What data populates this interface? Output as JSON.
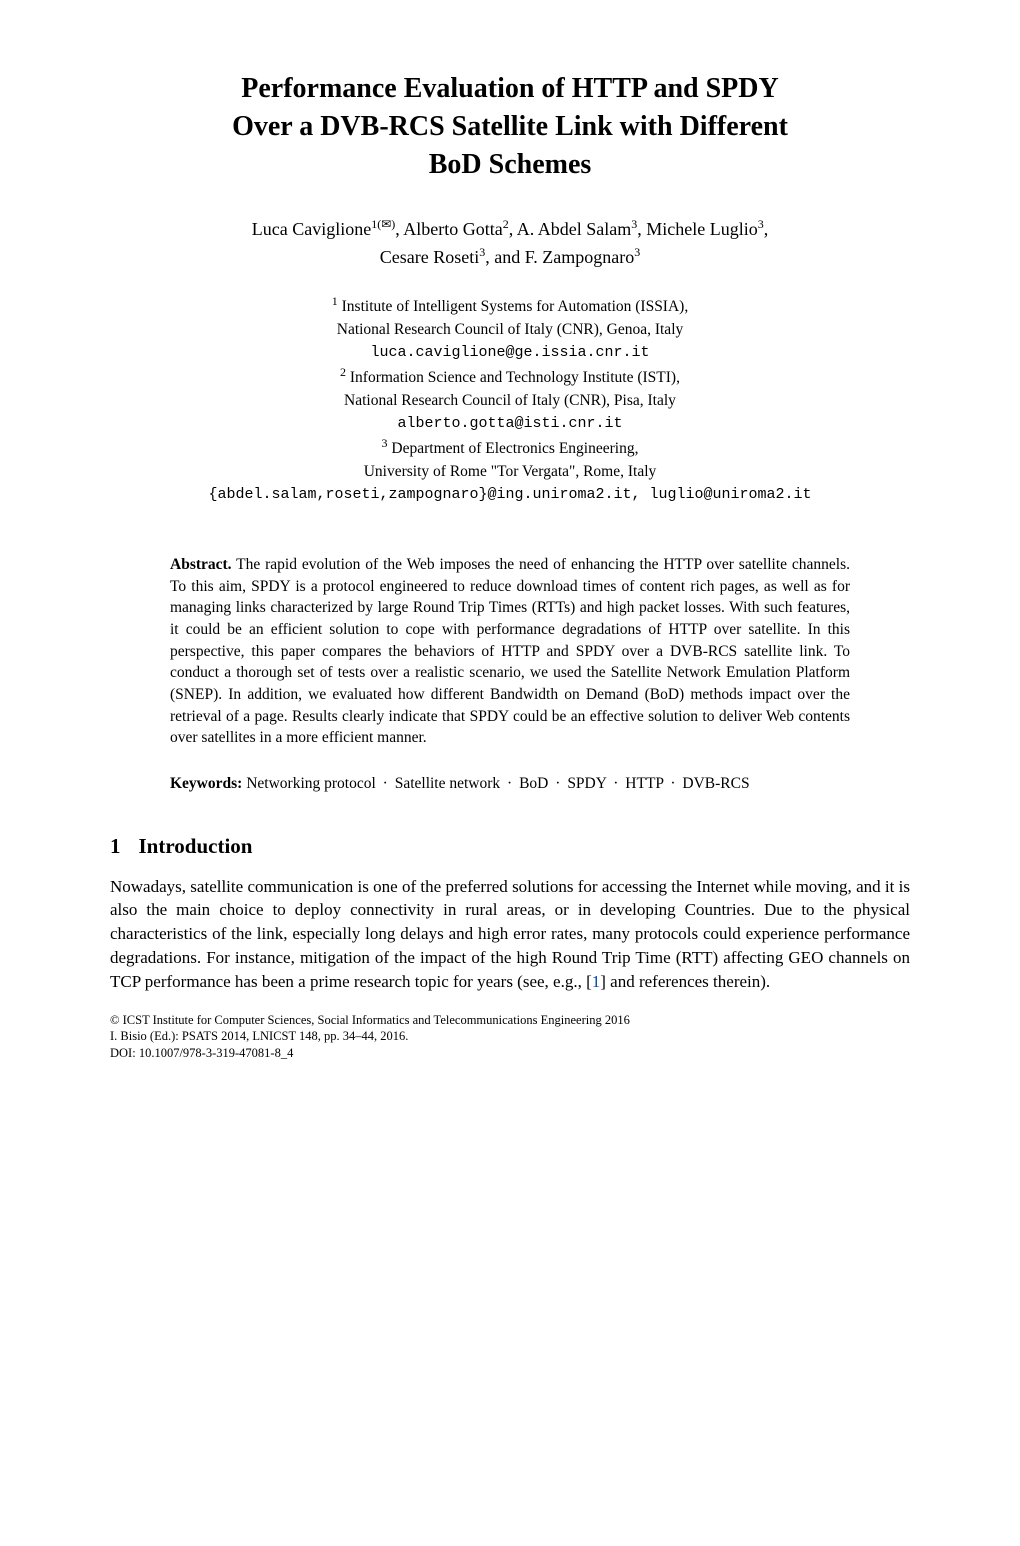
{
  "title_line1": "Performance Evaluation of HTTP and SPDY",
  "title_line2": "Over a DVB-RCS Satellite Link with Different",
  "title_line3": "BoD Schemes",
  "authors_line1_a1": "Luca Caviglione",
  "authors_line1_a1_sup": "1(",
  "authors_line1_a1_env": "✉",
  "authors_line1_a1_sup_close": ")",
  "authors_line1_sep1": ", ",
  "authors_line1_a2": "Alberto Gotta",
  "authors_line1_a2_sup": "2",
  "authors_line1_sep2": ", ",
  "authors_line1_a3": "A. Abdel Salam",
  "authors_line1_a3_sup": "3",
  "authors_line1_sep3": ", ",
  "authors_line1_a4": "Michele Luglio",
  "authors_line1_a4_sup": "3",
  "authors_line1_sep4": ",",
  "authors_line2_a5": "Cesare Roseti",
  "authors_line2_a5_sup": "3",
  "authors_line2_sep": ", and ",
  "authors_line2_a6": "F. Zampognaro",
  "authors_line2_a6_sup": "3",
  "aff1_sup": "1",
  "aff1_line1": " Institute of Intelligent Systems for Automation (ISSIA),",
  "aff1_line2": "National Research Council of Italy (CNR), Genoa, Italy",
  "aff1_email": "luca.caviglione@ge.issia.cnr.it",
  "aff2_sup": "2",
  "aff2_line1": " Information Science and Technology Institute (ISTI),",
  "aff2_line2": "National Research Council of Italy (CNR), Pisa, Italy",
  "aff2_email": "alberto.gotta@isti.cnr.it",
  "aff3_sup": "3",
  "aff3_line1": " Department of Electronics Engineering,",
  "aff3_line2": "University of Rome \"Tor Vergata\", Rome, Italy",
  "aff3_emails": "{abdel.salam,roseti,zampognaro}@ing.uniroma2.it, luglio@uniroma2.it",
  "abstract_label": "Abstract.",
  "abstract_text": " The rapid evolution of the Web imposes the need of enhancing the HTTP over satellite channels. To this aim, SPDY is a protocol engineered to reduce download times of content rich pages, as well as for managing links characterized by large Round Trip Times (RTTs) and high packet losses. With such features, it could be an efficient solution to cope with performance degradations of HTTP over satellite. In this perspective, this paper compares the behaviors of HTTP and SPDY over a DVB-RCS satellite link. To conduct a thorough set of tests over a realistic scenario, we used the Satellite Network Emulation Platform (SNEP). In addition, we evaluated how different Bandwidth on Demand (BoD) methods impact over the retrieval of a page. Results clearly indicate that SPDY could be an effective solution to deliver Web contents over satellites in a more efficient manner.",
  "keywords_label": "Keywords:",
  "kw1": "Networking protocol",
  "kw2": "Satellite network",
  "kw3": "BoD",
  "kw4": "SPDY",
  "kw5": "HTTP",
  "kw6": "DVB-RCS",
  "kw_sep": "·",
  "section1_num": "1",
  "section1_title": "Introduction",
  "intro_para_part1": "Nowadays, satellite communication is one of the preferred solutions for accessing the Internet while moving, and it is also the main choice to deploy connectivity in rural areas, or in developing Countries. Due to the physical characteristics of the link, especially long delays and high error rates, many protocols could experience performance degradations. For instance, mitigation of the impact of the high Round Trip Time (RTT) affecting GEO channels on TCP performance has been a prime research topic for years (see, e.g., [",
  "ref1_text": "1",
  "intro_para_part2": "] and references therein).",
  "footer_line1": "© ICST Institute for Computer Sciences, Social Informatics and Telecommunications Engineering 2016",
  "footer_line2": "I. Bisio (Ed.): PSATS 2014, LNICST 148, pp. 34–44, 2016.",
  "footer_line3_label": "DOI: ",
  "footer_line3_doi": "10.1007/978-3-319-47081-8_4"
}
